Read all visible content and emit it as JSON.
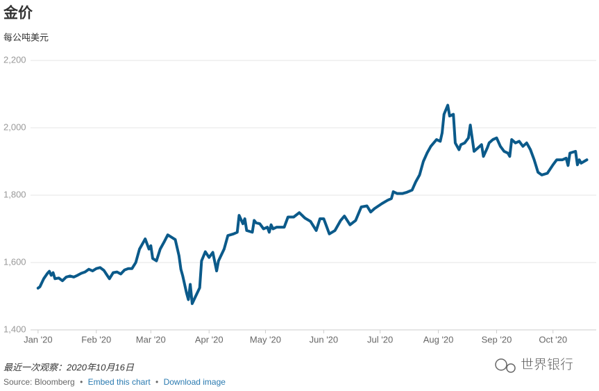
{
  "chart_data": {
    "type": "line",
    "title": "金价",
    "subtitle": "每公吨美元",
    "x": [
      0,
      1,
      3,
      5,
      6,
      7,
      8,
      9,
      11,
      13,
      15,
      17,
      19,
      21,
      23,
      25,
      27,
      29,
      31,
      33,
      35,
      37,
      38,
      40,
      42,
      44,
      46,
      48,
      50,
      52,
      54,
      56,
      57,
      59,
      60,
      61,
      63,
      65,
      67,
      69,
      71,
      73,
      75,
      76,
      77,
      79,
      80,
      81,
      82,
      83,
      86,
      87,
      89,
      91,
      93,
      95,
      96,
      99,
      101,
      104,
      106,
      107,
      109,
      110,
      111,
      114,
      115,
      116,
      118,
      120,
      122,
      123,
      124,
      125,
      127,
      131,
      133,
      136,
      139,
      142,
      145,
      148,
      150,
      152,
      153,
      155,
      158,
      161,
      163,
      166,
      169,
      172,
      175,
      177,
      179,
      183,
      186,
      188,
      189,
      191,
      194,
      196,
      199,
      201,
      203,
      205,
      207,
      209,
      212,
      214,
      215,
      216,
      218,
      219,
      221,
      222,
      224,
      225,
      227,
      229,
      230,
      232,
      234,
      236,
      237,
      239,
      240,
      242,
      244,
      246,
      248,
      250,
      251,
      252,
      254,
      256,
      258,
      260,
      262,
      264,
      266,
      268,
      271,
      274,
      276,
      279,
      281,
      282,
      283,
      286,
      287,
      288,
      289,
      292
    ],
    "series": [
      {
        "name": "金价",
        "color": "#0b5a8a",
        "values": [
          1524,
          1528,
          1552,
          1568,
          1574,
          1562,
          1570,
          1552,
          1554,
          1546,
          1557,
          1560,
          1557,
          1562,
          1568,
          1572,
          1580,
          1575,
          1582,
          1585,
          1577,
          1560,
          1552,
          1570,
          1572,
          1566,
          1578,
          1582,
          1582,
          1600,
          1640,
          1660,
          1670,
          1640,
          1650,
          1612,
          1605,
          1640,
          1660,
          1682,
          1675,
          1668,
          1620,
          1580,
          1560,
          1510,
          1490,
          1535,
          1478,
          1490,
          1525,
          1605,
          1632,
          1615,
          1630,
          1575,
          1605,
          1640,
          1680,
          1685,
          1690,
          1740,
          1715,
          1730,
          1695,
          1690,
          1725,
          1718,
          1715,
          1700,
          1705,
          1690,
          1712,
          1700,
          1705,
          1705,
          1735,
          1735,
          1748,
          1732,
          1722,
          1695,
          1730,
          1730,
          1715,
          1685,
          1695,
          1725,
          1738,
          1712,
          1725,
          1765,
          1768,
          1750,
          1760,
          1775,
          1785,
          1790,
          1810,
          1805,
          1805,
          1808,
          1815,
          1840,
          1860,
          1900,
          1925,
          1945,
          1965,
          1960,
          1985,
          2040,
          2067,
          2035,
          2040,
          1955,
          1935,
          1950,
          1955,
          1970,
          2008,
          1930,
          1940,
          1950,
          1915,
          1940,
          1955,
          1965,
          1970,
          1945,
          1930,
          1925,
          1915,
          1965,
          1955,
          1960,
          1945,
          1955,
          1935,
          1905,
          1868,
          1860,
          1865,
          1890,
          1905,
          1905,
          1910,
          1888,
          1925,
          1930,
          1890,
          1905,
          1895,
          1905
        ]
      }
    ],
    "xlim": [
      -4,
      297
    ],
    "xticks": [
      {
        "value": 0,
        "label": "Jan '20"
      },
      {
        "value": 31,
        "label": "Feb '20"
      },
      {
        "value": 60,
        "label": "Mar '20"
      },
      {
        "value": 91,
        "label": "Apr '20"
      },
      {
        "value": 121,
        "label": "May '20"
      },
      {
        "value": 152,
        "label": "Jun '20"
      },
      {
        "value": 182,
        "label": "Jul '20"
      },
      {
        "value": 213,
        "label": "Aug '20"
      },
      {
        "value": 244,
        "label": "Sep '20"
      },
      {
        "value": 274,
        "label": "Oct '20"
      }
    ],
    "ylim": [
      1400,
      2200
    ],
    "yticks": [
      {
        "value": 1400,
        "label": "1,400"
      },
      {
        "value": 1600,
        "label": "1,600"
      },
      {
        "value": 1800,
        "label": "1,800"
      },
      {
        "value": 2000,
        "label": "2,000"
      },
      {
        "value": 2200,
        "label": "2,200"
      }
    ],
    "grid": true,
    "note": "最近一次观察：2020年10月16日",
    "source": "Source: Bloomberg",
    "separator": "•",
    "embed": "Embed this chart",
    "download": "Download image",
    "watermark": "世界银行"
  }
}
